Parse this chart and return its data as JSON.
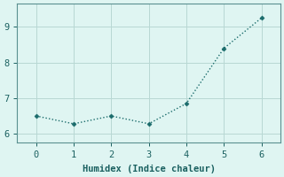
{
  "x": [
    0,
    1,
    2,
    3,
    4,
    5,
    6
  ],
  "y": [
    6.5,
    6.28,
    6.5,
    6.28,
    6.85,
    8.4,
    9.25
  ],
  "line_color": "#1a6b6b",
  "marker": "D",
  "marker_size": 2.5,
  "background_color": "#dff5f2",
  "grid_color": "#b8d8d4",
  "xlabel": "Humidex (Indice chaleur)",
  "xlim": [
    -0.5,
    6.5
  ],
  "ylim": [
    5.75,
    9.65
  ],
  "xticks": [
    0,
    1,
    2,
    3,
    4,
    5,
    6
  ],
  "yticks": [
    6,
    7,
    8,
    9
  ],
  "font_color": "#1a6060",
  "font_size": 7.5,
  "tick_font_size": 7.5,
  "linewidth": 1.0,
  "spine_color": "#5a9090"
}
